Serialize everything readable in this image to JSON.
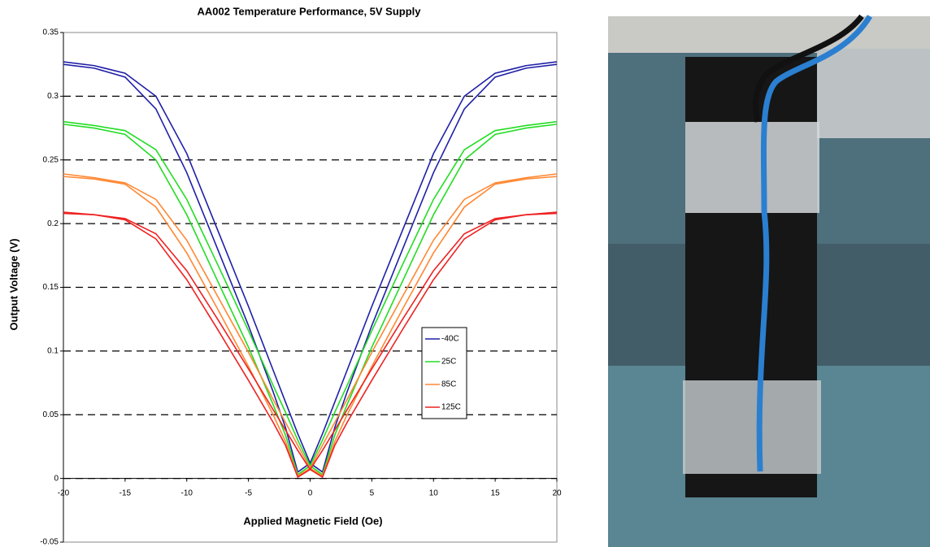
{
  "chart_data": {
    "type": "line",
    "title": "AA002 Temperature Performance, 5V Supply",
    "xlabel": "Applied Magnetic Field (Oe)",
    "ylabel": "Output Voltage (V)",
    "x": [
      -20,
      -17.5,
      -15,
      -12.5,
      -10,
      -7.5,
      -5,
      -3,
      -2,
      -1,
      0,
      1,
      2,
      3,
      5,
      7.5,
      10,
      12.5,
      15,
      17.5,
      20
    ],
    "xlim": [
      -20,
      20
    ],
    "xticks": [
      -20,
      -15,
      -10,
      -5,
      0,
      5,
      10,
      15,
      20
    ],
    "ylim": [
      -0.05,
      0.35
    ],
    "yticks": [
      -0.05,
      0,
      0.05,
      0.1,
      0.15,
      0.2,
      0.25,
      0.3,
      0.35
    ],
    "grid": true,
    "series": [
      {
        "name": "-40C",
        "color": "#1f1fa8",
        "sweeps": [
          [
            0.325,
            0.322,
            0.315,
            0.29,
            0.24,
            0.18,
            0.12,
            0.068,
            0.04,
            0.005,
            0.012,
            0.035,
            0.06,
            0.085,
            0.135,
            0.195,
            0.255,
            0.3,
            0.318,
            0.324,
            0.327
          ],
          [
            0.327,
            0.324,
            0.318,
            0.3,
            0.255,
            0.195,
            0.135,
            0.085,
            0.06,
            0.035,
            0.012,
            0.005,
            0.04,
            0.068,
            0.12,
            0.18,
            0.24,
            0.29,
            0.315,
            0.322,
            0.325
          ]
        ]
      },
      {
        "name": "25C",
        "color": "#22dd22",
        "sweeps": [
          [
            0.278,
            0.275,
            0.27,
            0.25,
            0.207,
            0.155,
            0.103,
            0.058,
            0.034,
            0.003,
            0.01,
            0.03,
            0.052,
            0.073,
            0.116,
            0.168,
            0.219,
            0.258,
            0.273,
            0.277,
            0.28
          ],
          [
            0.28,
            0.277,
            0.273,
            0.258,
            0.219,
            0.168,
            0.116,
            0.073,
            0.052,
            0.03,
            0.01,
            0.003,
            0.034,
            0.058,
            0.103,
            0.155,
            0.207,
            0.25,
            0.27,
            0.275,
            0.278
          ]
        ]
      },
      {
        "name": "85C",
        "color": "#ff8833",
        "sweeps": [
          [
            0.237,
            0.235,
            0.231,
            0.213,
            0.177,
            0.133,
            0.088,
            0.05,
            0.029,
            0.002,
            0.008,
            0.026,
            0.044,
            0.062,
            0.099,
            0.143,
            0.187,
            0.219,
            0.232,
            0.236,
            0.239
          ],
          [
            0.239,
            0.236,
            0.232,
            0.219,
            0.187,
            0.143,
            0.099,
            0.062,
            0.044,
            0.026,
            0.008,
            0.002,
            0.029,
            0.05,
            0.088,
            0.133,
            0.177,
            0.213,
            0.231,
            0.235,
            0.237
          ]
        ]
      },
      {
        "name": "125C",
        "color": "#ee2222",
        "sweeps": [
          [
            0.208,
            0.207,
            0.203,
            0.188,
            0.156,
            0.117,
            0.077,
            0.044,
            0.026,
            0.001,
            0.007,
            0.022,
            0.038,
            0.054,
            0.086,
            0.125,
            0.163,
            0.192,
            0.204,
            0.207,
            0.209
          ],
          [
            0.209,
            0.207,
            0.204,
            0.192,
            0.163,
            0.125,
            0.086,
            0.054,
            0.038,
            0.022,
            0.007,
            0.001,
            0.026,
            0.044,
            0.077,
            0.117,
            0.156,
            0.188,
            0.203,
            0.207,
            0.208
          ]
        ]
      }
    ]
  }
}
